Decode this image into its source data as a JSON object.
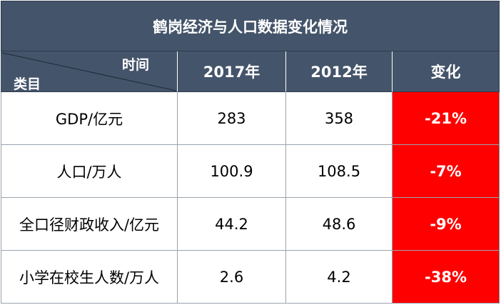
{
  "table": {
    "title": "鹤岗经济与人口数据变化情况",
    "corner": {
      "top_label": "时间",
      "bottom_label": "类目"
    },
    "columns": [
      "2017年",
      "2012年",
      "变化"
    ],
    "rows": [
      {
        "item": "GDP/亿元",
        "y2017": "283",
        "y2012": "358",
        "change": "-21%"
      },
      {
        "item": "人口/万人",
        "y2017": "100.9",
        "y2012": "108.5",
        "change": "-7%"
      },
      {
        "item": "全口径财政收入/亿元",
        "y2017": "44.2",
        "y2012": "48.6",
        "change": "-9%"
      },
      {
        "item": "小学在校生人数/万人",
        "y2017": "2.6",
        "y2012": "4.2",
        "change": "-38%"
      }
    ],
    "colors": {
      "header_bg": "#44546a",
      "header_text": "#ffffff",
      "change_bg": "#ff0000",
      "change_text": "#ffffff"
    }
  }
}
